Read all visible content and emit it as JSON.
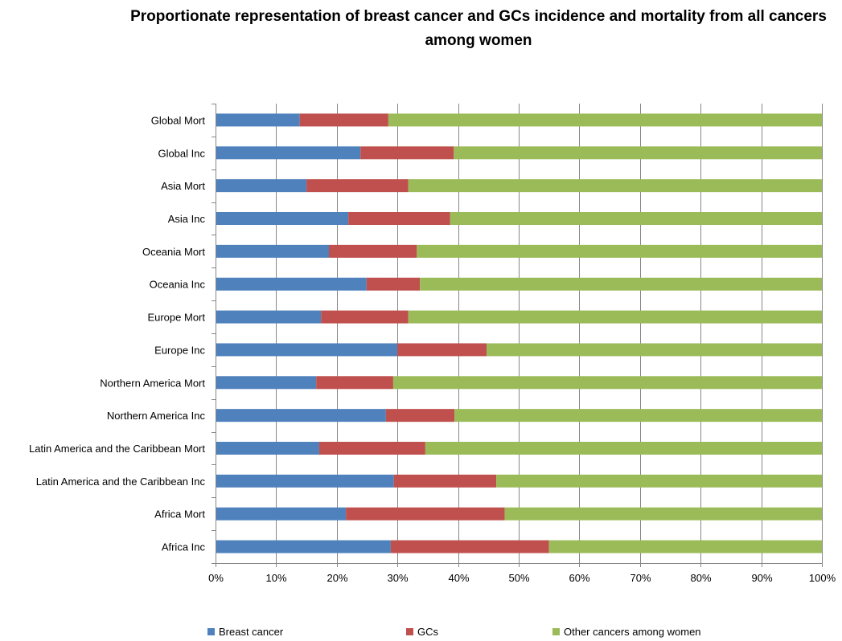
{
  "chart_data": {
    "type": "bar",
    "orientation": "horizontal",
    "stacked": "percent",
    "title": "Proportionate representation of  breast cancer and GCs incidence and mortality from all cancers among women",
    "xlabel": "",
    "ylabel": "",
    "xlim": [
      0,
      100
    ],
    "x_ticks": [
      "0%",
      "10%",
      "20%",
      "30%",
      "40%",
      "50%",
      "60%",
      "70%",
      "80%",
      "90%",
      "100%"
    ],
    "grid": "vertical",
    "legend_position": "bottom",
    "categories": [
      "Africa Inc",
      "Africa Mort",
      "Latin America and the Caribbean Inc",
      "Latin America and the Caribbean Mort",
      "Northern America Inc",
      "Northern America Mort",
      "Europe Inc",
      "Europe Mort",
      "Oceania Inc",
      "Oceania Mort",
      "Asia Inc",
      "Asia Mort",
      "Global Inc",
      "Global Mort"
    ],
    "series": [
      {
        "name": "Breast cancer",
        "color": "#4F81BD",
        "values": [
          28.9,
          21.5,
          29.4,
          17.1,
          28.1,
          16.6,
          30.0,
          17.4,
          24.9,
          18.7,
          21.9,
          15.0,
          23.9,
          13.9
        ]
      },
      {
        "name": "GCs",
        "color": "#C0504D",
        "values": [
          26.1,
          26.2,
          16.9,
          17.5,
          11.3,
          12.7,
          14.7,
          14.4,
          8.8,
          14.5,
          16.8,
          16.8,
          15.4,
          14.6
        ]
      },
      {
        "name": "Other cancers among women",
        "color": "#9BBB59",
        "values": [
          45.0,
          52.3,
          53.7,
          65.4,
          60.6,
          70.7,
          55.3,
          68.2,
          66.3,
          66.8,
          61.3,
          68.2,
          60.7,
          71.5
        ]
      }
    ]
  },
  "legend": {
    "items": [
      {
        "label": "Breast cancer",
        "color": "#4F81BD"
      },
      {
        "label": "GCs",
        "color": "#C0504D"
      },
      {
        "label": "Other cancers among women",
        "color": "#9BBB59"
      }
    ]
  }
}
